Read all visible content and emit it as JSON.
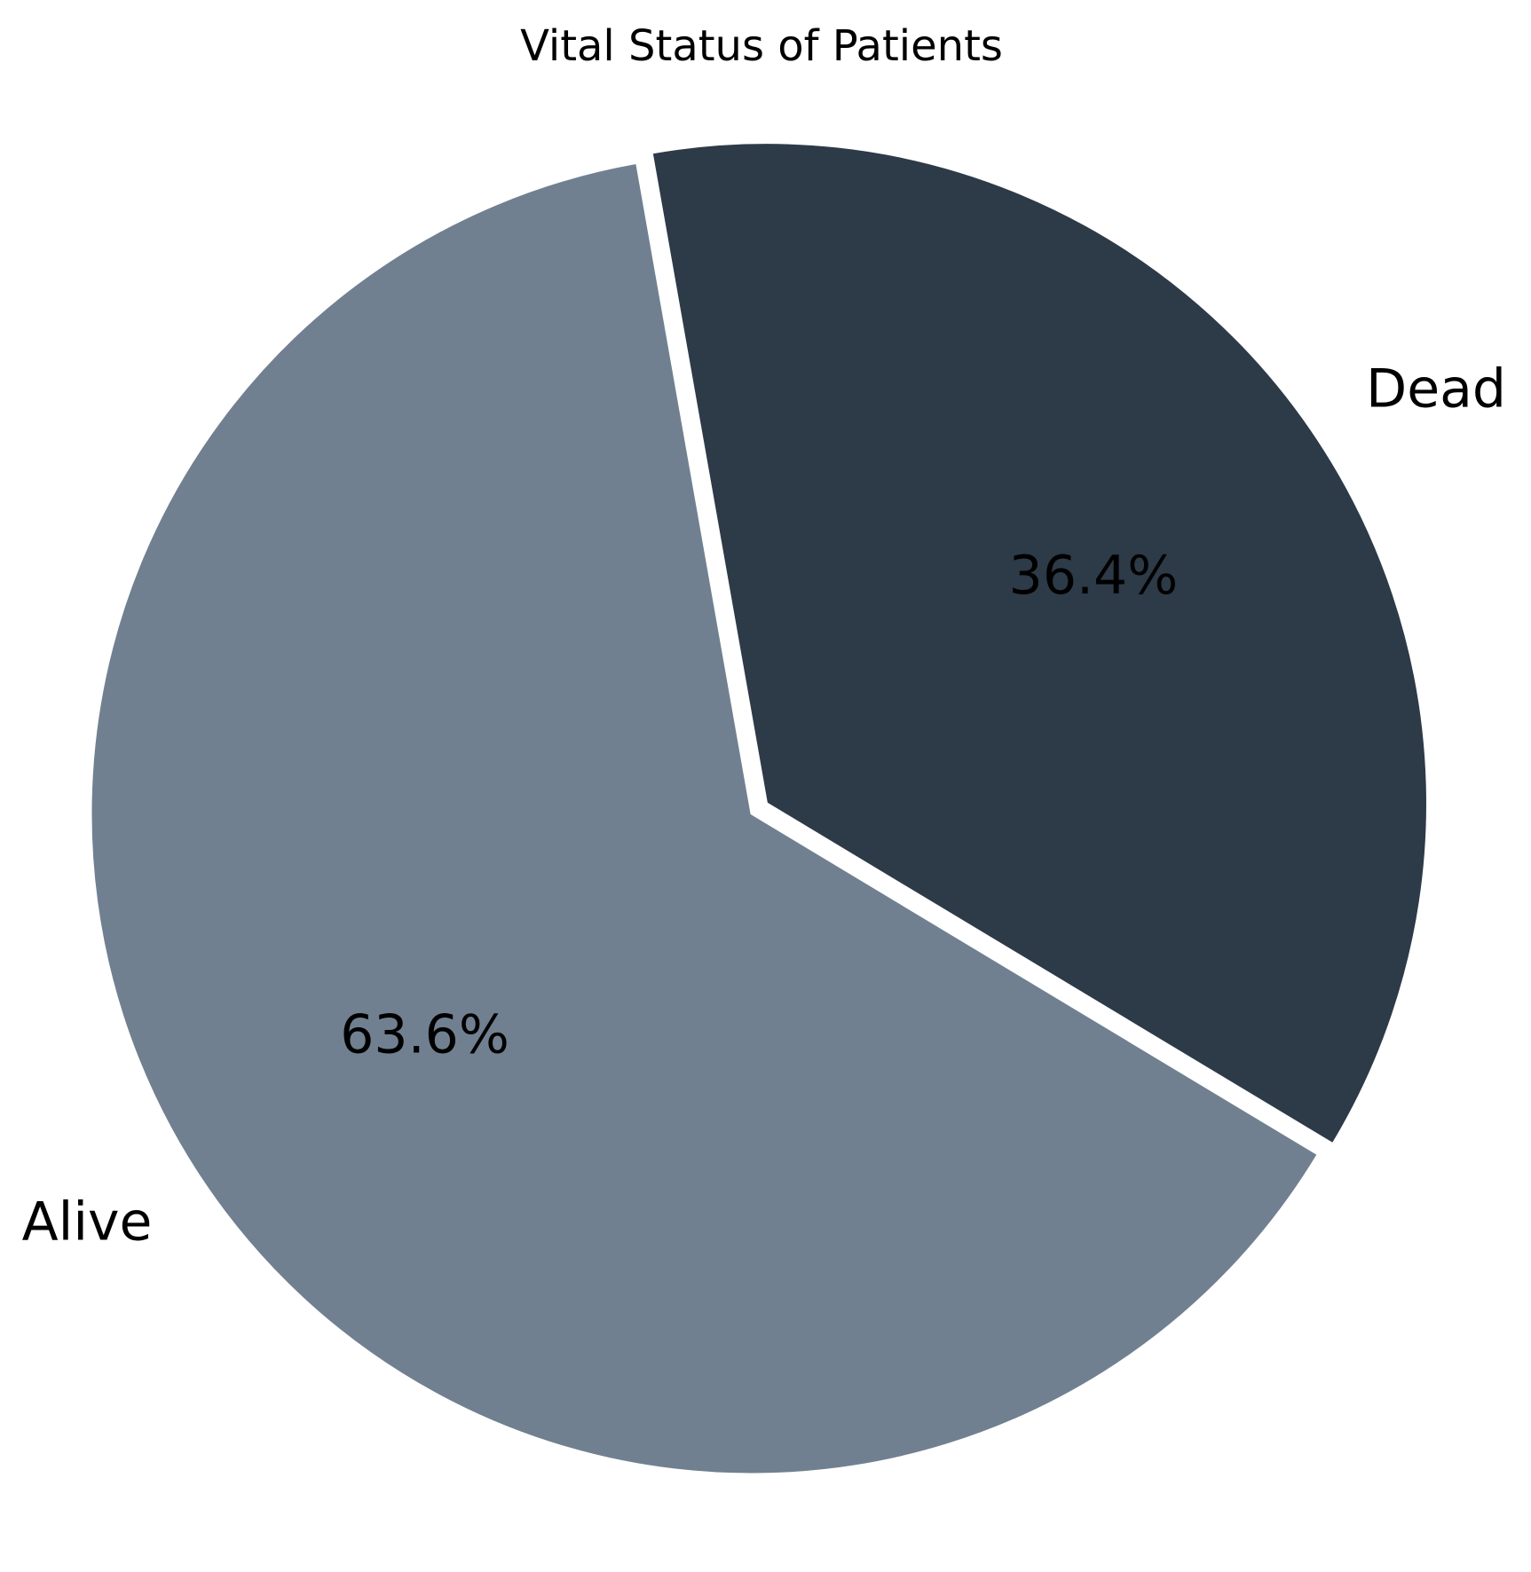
{
  "chart_data": {
    "type": "pie",
    "title": "Vital Status of Patients",
    "slices": [
      {
        "label": "Alive",
        "value": 63.6,
        "percent_label": "63.6%",
        "color": "#708090",
        "exploded": false
      },
      {
        "label": "Dead",
        "value": 36.4,
        "percent_label": "36.4%",
        "color": "#2d3a48",
        "exploded": true
      }
    ],
    "legend": false,
    "edge_color": "#ffffff"
  }
}
